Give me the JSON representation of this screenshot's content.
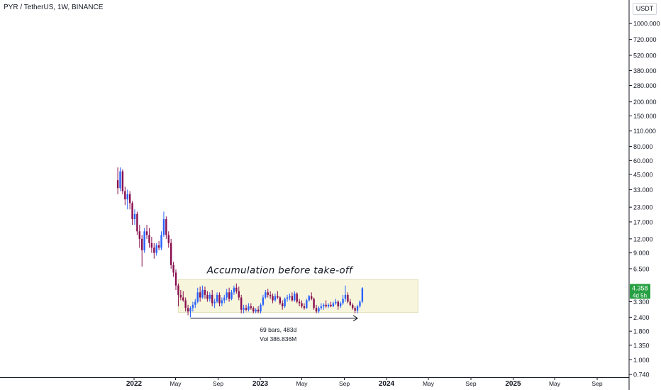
{
  "header": {
    "symbol_title": "PYR / TetherUS, 1W, BINANCE",
    "axis_unit": "USDT"
  },
  "colors": {
    "up": "#2962ff",
    "down": "#880e4f",
    "box_fill": "#f7f6dc",
    "box_stroke": "#e0dfb8",
    "price_badge": "#26a042",
    "axis_text": "#131722",
    "grid": "#e6e6e6"
  },
  "chart_data": {
    "type": "candlestick",
    "y_scale": "log",
    "ylim": [
      0.7,
      1400
    ],
    "price_ticks": [
      "1000.000",
      "720.000",
      "520.000",
      "380.000",
      "280.000",
      "200.000",
      "150.000",
      "110.000",
      "80.000",
      "60.000",
      "45.000",
      "33.000",
      "23.000",
      "17.000",
      "12.000",
      "9.000",
      "6.500",
      "3.300",
      "2.400",
      "1.800",
      "1.350",
      "1.000",
      "0.740"
    ],
    "time_ticks": [
      {
        "label": "2022",
        "date": "2022-01-01",
        "bold": true
      },
      {
        "label": "May",
        "date": "2022-05-01",
        "bold": false
      },
      {
        "label": "Sep",
        "date": "2022-09-01",
        "bold": false
      },
      {
        "label": "2023",
        "date": "2023-01-01",
        "bold": true
      },
      {
        "label": "May",
        "date": "2023-05-01",
        "bold": false
      },
      {
        "label": "Sep",
        "date": "2023-09-01",
        "bold": false
      },
      {
        "label": "2024",
        "date": "2024-01-01",
        "bold": true
      },
      {
        "label": "May",
        "date": "2024-05-01",
        "bold": false
      },
      {
        "label": "Sep",
        "date": "2024-09-01",
        "bold": false
      },
      {
        "label": "2025",
        "date": "2025-01-01",
        "bold": true
      },
      {
        "label": "May",
        "date": "2025-05-01",
        "bold": false
      },
      {
        "label": "Sep",
        "date": "2025-09-01",
        "bold": false
      }
    ],
    "current_price": {
      "value": 4.358,
      "label": "4.358",
      "countdown": "4d 5h"
    },
    "annotation": {
      "text": "Accumulation before take-off",
      "box": {
        "from": "2022-05-09",
        "to": "2024-04-01",
        "low": 2.65,
        "high": 5.2
      }
    },
    "measure": {
      "from": "2022-06-13",
      "to": "2023-10-09",
      "price": 2.35,
      "line1": "69 bars, 483d",
      "line2": "Vol 386.836M"
    },
    "candles": [
      {
        "d": "2021-11-15",
        "o": 40,
        "h": 52,
        "l": 30,
        "c": 34
      },
      {
        "d": "2021-11-22",
        "o": 34,
        "h": 52,
        "l": 32,
        "c": 48
      },
      {
        "d": "2021-11-29",
        "o": 48,
        "h": 50,
        "l": 30,
        "c": 32
      },
      {
        "d": "2021-12-06",
        "o": 32,
        "h": 35,
        "l": 24,
        "c": 27
      },
      {
        "d": "2021-12-13",
        "o": 27,
        "h": 33,
        "l": 22,
        "c": 30
      },
      {
        "d": "2021-12-20",
        "o": 30,
        "h": 32,
        "l": 22,
        "c": 25
      },
      {
        "d": "2021-12-27",
        "o": 25,
        "h": 26,
        "l": 16,
        "c": 18
      },
      {
        "d": "2022-01-03",
        "o": 18,
        "h": 22,
        "l": 16,
        "c": 20
      },
      {
        "d": "2022-01-10",
        "o": 20,
        "h": 21,
        "l": 13,
        "c": 14
      },
      {
        "d": "2022-01-17",
        "o": 14,
        "h": 16,
        "l": 10,
        "c": 12
      },
      {
        "d": "2022-01-24",
        "o": 12,
        "h": 13,
        "l": 6.8,
        "c": 9.5
      },
      {
        "d": "2022-01-31",
        "o": 9.5,
        "h": 15,
        "l": 9,
        "c": 14
      },
      {
        "d": "2022-02-07",
        "o": 14,
        "h": 16,
        "l": 12,
        "c": 13
      },
      {
        "d": "2022-02-14",
        "o": 13,
        "h": 15,
        "l": 10,
        "c": 11
      },
      {
        "d": "2022-02-21",
        "o": 11,
        "h": 12.5,
        "l": 9,
        "c": 10
      },
      {
        "d": "2022-02-28",
        "o": 10,
        "h": 11,
        "l": 8,
        "c": 9
      },
      {
        "d": "2022-03-07",
        "o": 9,
        "h": 11,
        "l": 8.5,
        "c": 10.5
      },
      {
        "d": "2022-03-14",
        "o": 10.5,
        "h": 11.5,
        "l": 9.5,
        "c": 10
      },
      {
        "d": "2022-03-21",
        "o": 10,
        "h": 14,
        "l": 9.5,
        "c": 13
      },
      {
        "d": "2022-03-28",
        "o": 13,
        "h": 21,
        "l": 12.5,
        "c": 18
      },
      {
        "d": "2022-04-04",
        "o": 18,
        "h": 19,
        "l": 12,
        "c": 13
      },
      {
        "d": "2022-04-11",
        "o": 13,
        "h": 14,
        "l": 10,
        "c": 11
      },
      {
        "d": "2022-04-18",
        "o": 11,
        "h": 12,
        "l": 6.5,
        "c": 7
      },
      {
        "d": "2022-04-25",
        "o": 7,
        "h": 7.5,
        "l": 5.5,
        "c": 6
      },
      {
        "d": "2022-05-02",
        "o": 6,
        "h": 6.4,
        "l": 4.2,
        "c": 4.6
      },
      {
        "d": "2022-05-09",
        "o": 4.6,
        "h": 4.8,
        "l": 3.0,
        "c": 3.8
      },
      {
        "d": "2022-05-16",
        "o": 3.8,
        "h": 4.2,
        "l": 3.4,
        "c": 3.6
      },
      {
        "d": "2022-05-23",
        "o": 3.6,
        "h": 4.1,
        "l": 3.3,
        "c": 3.4
      },
      {
        "d": "2022-05-30",
        "o": 3.4,
        "h": 3.6,
        "l": 2.7,
        "c": 2.9
      },
      {
        "d": "2022-06-06",
        "o": 2.9,
        "h": 3.1,
        "l": 2.5,
        "c": 2.7
      },
      {
        "d": "2022-06-13",
        "o": 2.7,
        "h": 3.0,
        "l": 2.4,
        "c": 2.9
      },
      {
        "d": "2022-06-20",
        "o": 2.9,
        "h": 3.3,
        "l": 2.7,
        "c": 3.1
      },
      {
        "d": "2022-06-27",
        "o": 3.1,
        "h": 3.5,
        "l": 2.9,
        "c": 3.3
      },
      {
        "d": "2022-07-04",
        "o": 3.3,
        "h": 4.4,
        "l": 3.2,
        "c": 4.0
      },
      {
        "d": "2022-07-11",
        "o": 4.0,
        "h": 4.5,
        "l": 3.3,
        "c": 3.6
      },
      {
        "d": "2022-07-18",
        "o": 3.6,
        "h": 4.6,
        "l": 3.5,
        "c": 4.2
      },
      {
        "d": "2022-07-25",
        "o": 4.2,
        "h": 4.5,
        "l": 3.5,
        "c": 3.8
      },
      {
        "d": "2022-08-01",
        "o": 3.8,
        "h": 4.1,
        "l": 3.3,
        "c": 3.5
      },
      {
        "d": "2022-08-08",
        "o": 3.5,
        "h": 4.0,
        "l": 3.3,
        "c": 3.8
      },
      {
        "d": "2022-08-15",
        "o": 3.8,
        "h": 4.2,
        "l": 3.0,
        "c": 3.2
      },
      {
        "d": "2022-08-22",
        "o": 3.2,
        "h": 3.5,
        "l": 2.9,
        "c": 3.3
      },
      {
        "d": "2022-08-29",
        "o": 3.3,
        "h": 4.0,
        "l": 3.2,
        "c": 3.8
      },
      {
        "d": "2022-09-05",
        "o": 3.8,
        "h": 4.0,
        "l": 3.0,
        "c": 3.2
      },
      {
        "d": "2022-09-12",
        "o": 3.2,
        "h": 3.6,
        "l": 3.0,
        "c": 3.4
      },
      {
        "d": "2022-09-19",
        "o": 3.4,
        "h": 3.8,
        "l": 3.2,
        "c": 3.6
      },
      {
        "d": "2022-09-26",
        "o": 3.6,
        "h": 4.3,
        "l": 3.4,
        "c": 4.0
      },
      {
        "d": "2022-10-03",
        "o": 4.0,
        "h": 4.4,
        "l": 3.3,
        "c": 3.5
      },
      {
        "d": "2022-10-10",
        "o": 3.5,
        "h": 4.2,
        "l": 3.4,
        "c": 4.0
      },
      {
        "d": "2022-10-17",
        "o": 4.0,
        "h": 4.6,
        "l": 3.8,
        "c": 4.4
      },
      {
        "d": "2022-10-24",
        "o": 4.4,
        "h": 4.8,
        "l": 3.9,
        "c": 4.1
      },
      {
        "d": "2022-10-31",
        "o": 4.1,
        "h": 4.5,
        "l": 3.4,
        "c": 3.6
      },
      {
        "d": "2022-11-07",
        "o": 3.6,
        "h": 3.8,
        "l": 2.6,
        "c": 2.8
      },
      {
        "d": "2022-11-14",
        "o": 2.8,
        "h": 3.1,
        "l": 2.6,
        "c": 2.9
      },
      {
        "d": "2022-11-21",
        "o": 2.9,
        "h": 3.1,
        "l": 2.7,
        "c": 2.8
      },
      {
        "d": "2022-11-28",
        "o": 2.8,
        "h": 3.2,
        "l": 2.7,
        "c": 3.0
      },
      {
        "d": "2022-12-05",
        "o": 3.0,
        "h": 3.2,
        "l": 2.8,
        "c": 2.9
      },
      {
        "d": "2022-12-12",
        "o": 2.9,
        "h": 3.0,
        "l": 2.6,
        "c": 2.7
      },
      {
        "d": "2022-12-19",
        "o": 2.7,
        "h": 2.9,
        "l": 2.6,
        "c": 2.8
      },
      {
        "d": "2022-12-26",
        "o": 2.8,
        "h": 3.0,
        "l": 2.6,
        "c": 2.7
      },
      {
        "d": "2023-01-02",
        "o": 2.7,
        "h": 3.2,
        "l": 2.6,
        "c": 3.1
      },
      {
        "d": "2023-01-09",
        "o": 3.1,
        "h": 3.8,
        "l": 3.0,
        "c": 3.6
      },
      {
        "d": "2023-01-16",
        "o": 3.6,
        "h": 4.2,
        "l": 3.5,
        "c": 4.0
      },
      {
        "d": "2023-01-23",
        "o": 4.0,
        "h": 4.3,
        "l": 3.6,
        "c": 3.8
      },
      {
        "d": "2023-01-30",
        "o": 3.8,
        "h": 4.1,
        "l": 3.5,
        "c": 3.7
      },
      {
        "d": "2023-02-06",
        "o": 3.7,
        "h": 3.9,
        "l": 3.2,
        "c": 3.4
      },
      {
        "d": "2023-02-13",
        "o": 3.4,
        "h": 3.9,
        "l": 3.3,
        "c": 3.7
      },
      {
        "d": "2023-02-20",
        "o": 3.7,
        "h": 4.1,
        "l": 3.5,
        "c": 3.6
      },
      {
        "d": "2023-02-27",
        "o": 3.6,
        "h": 3.7,
        "l": 3.1,
        "c": 3.2
      },
      {
        "d": "2023-03-06",
        "o": 3.2,
        "h": 3.4,
        "l": 2.8,
        "c": 3.0
      },
      {
        "d": "2023-03-13",
        "o": 3.0,
        "h": 3.6,
        "l": 2.9,
        "c": 3.5
      },
      {
        "d": "2023-03-20",
        "o": 3.5,
        "h": 3.8,
        "l": 3.3,
        "c": 3.6
      },
      {
        "d": "2023-03-27",
        "o": 3.6,
        "h": 3.9,
        "l": 3.4,
        "c": 3.7
      },
      {
        "d": "2023-04-03",
        "o": 3.7,
        "h": 4.0,
        "l": 3.3,
        "c": 3.4
      },
      {
        "d": "2023-04-10",
        "o": 3.4,
        "h": 4.1,
        "l": 3.3,
        "c": 3.9
      },
      {
        "d": "2023-04-17",
        "o": 3.9,
        "h": 4.0,
        "l": 3.2,
        "c": 3.3
      },
      {
        "d": "2023-04-24",
        "o": 3.3,
        "h": 3.5,
        "l": 3.0,
        "c": 3.2
      },
      {
        "d": "2023-05-01",
        "o": 3.2,
        "h": 3.4,
        "l": 2.9,
        "c": 3.0
      },
      {
        "d": "2023-05-08",
        "o": 3.0,
        "h": 3.2,
        "l": 2.8,
        "c": 2.9
      },
      {
        "d": "2023-05-15",
        "o": 2.9,
        "h": 3.5,
        "l": 2.85,
        "c": 3.4
      },
      {
        "d": "2023-05-22",
        "o": 3.4,
        "h": 3.8,
        "l": 3.3,
        "c": 3.7
      },
      {
        "d": "2023-05-29",
        "o": 3.7,
        "h": 4.0,
        "l": 3.4,
        "c": 3.5
      },
      {
        "d": "2023-06-05",
        "o": 3.5,
        "h": 3.6,
        "l": 2.8,
        "c": 2.9
      },
      {
        "d": "2023-06-12",
        "o": 2.9,
        "h": 3.1,
        "l": 2.6,
        "c": 2.7
      },
      {
        "d": "2023-06-19",
        "o": 2.7,
        "h": 3.0,
        "l": 2.6,
        "c": 2.9
      },
      {
        "d": "2023-06-26",
        "o": 2.9,
        "h": 3.2,
        "l": 2.8,
        "c": 3.0
      },
      {
        "d": "2023-07-03",
        "o": 3.0,
        "h": 3.2,
        "l": 2.8,
        "c": 3.1
      },
      {
        "d": "2023-07-10",
        "o": 3.1,
        "h": 3.4,
        "l": 2.9,
        "c": 3.0
      },
      {
        "d": "2023-07-17",
        "o": 3.0,
        "h": 3.2,
        "l": 2.9,
        "c": 3.1
      },
      {
        "d": "2023-07-24",
        "o": 3.1,
        "h": 3.3,
        "l": 2.95,
        "c": 3.0
      },
      {
        "d": "2023-07-31",
        "o": 3.0,
        "h": 3.3,
        "l": 2.95,
        "c": 3.2
      },
      {
        "d": "2023-08-07",
        "o": 3.2,
        "h": 3.5,
        "l": 3.1,
        "c": 3.3
      },
      {
        "d": "2023-08-14",
        "o": 3.3,
        "h": 3.4,
        "l": 2.8,
        "c": 3.0
      },
      {
        "d": "2023-08-21",
        "o": 3.0,
        "h": 3.3,
        "l": 2.9,
        "c": 3.2
      },
      {
        "d": "2023-08-28",
        "o": 3.2,
        "h": 3.8,
        "l": 3.1,
        "c": 3.5
      },
      {
        "d": "2023-09-04",
        "o": 3.5,
        "h": 4.6,
        "l": 3.3,
        "c": 3.8
      },
      {
        "d": "2023-09-11",
        "o": 3.8,
        "h": 4.0,
        "l": 3.2,
        "c": 3.3
      },
      {
        "d": "2023-09-18",
        "o": 3.3,
        "h": 3.5,
        "l": 3.0,
        "c": 3.1
      },
      {
        "d": "2023-09-25",
        "o": 3.1,
        "h": 3.2,
        "l": 2.8,
        "c": 2.9
      },
      {
        "d": "2023-10-02",
        "o": 2.9,
        "h": 3.0,
        "l": 2.6,
        "c": 2.75
      },
      {
        "d": "2023-10-09",
        "o": 2.75,
        "h": 3.1,
        "l": 2.6,
        "c": 3.0
      },
      {
        "d": "2023-10-16",
        "o": 3.0,
        "h": 3.4,
        "l": 2.9,
        "c": 3.3
      },
      {
        "d": "2023-10-23",
        "o": 3.3,
        "h": 4.45,
        "l": 3.2,
        "c": 4.358
      }
    ]
  }
}
